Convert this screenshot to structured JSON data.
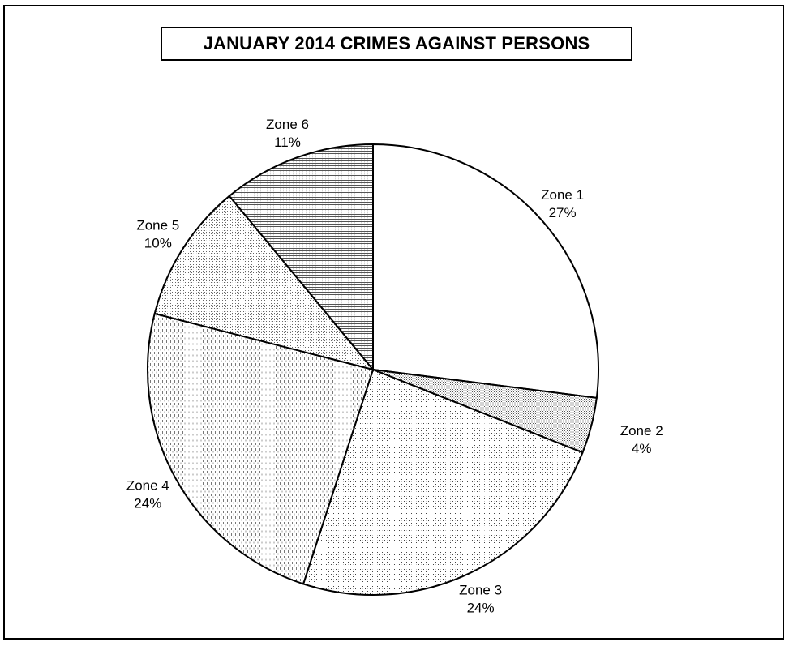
{
  "chart_data": {
    "type": "pie",
    "title": "JANUARY 2014 CRIMES AGAINST PERSONS",
    "categories": [
      "Zone 1",
      "Zone 2",
      "Zone 3",
      "Zone 4",
      "Zone 5",
      "Zone 6"
    ],
    "values": [
      27,
      4,
      24,
      24,
      10,
      11
    ],
    "value_labels": [
      "27%",
      "4%",
      "24%",
      "24%",
      "10%",
      "11%"
    ],
    "start_angle": "12 o'clock",
    "direction": "clockwise",
    "legend": "none",
    "colors": [
      "#ffffff",
      "#b8b8b8",
      "#d4d4d4",
      "#c4c4c4",
      "#cfcfcf",
      "#9a9a9a"
    ]
  }
}
